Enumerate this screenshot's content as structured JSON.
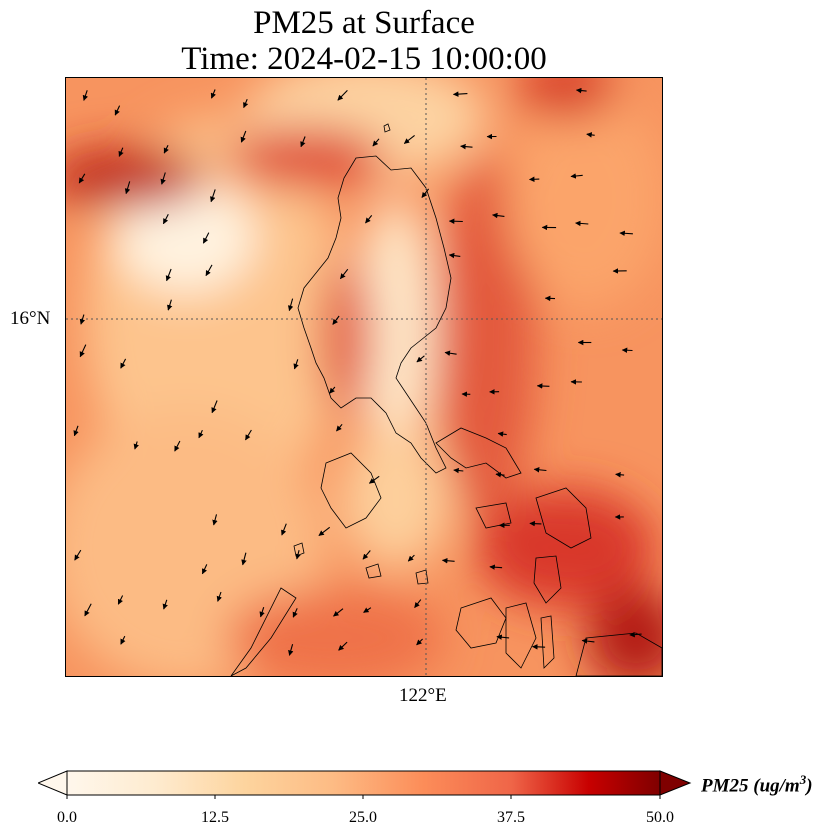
{
  "title": {
    "line1": "PM25 at Surface",
    "line2": "Time: 2024-02-15 10:00:00"
  },
  "map": {
    "variable": "PM25",
    "units": "ug/m3",
    "level": "Surface",
    "gridlines": "dotted",
    "lat_tick": "16°N",
    "lon_tick": "122°E",
    "features": [
      "coastlines",
      "wind-vectors"
    ]
  },
  "colorbar": {
    "label_var": "PM25 ",
    "label_units_open": "(ug/m",
    "label_units_exp": "3",
    "label_units_close": ")",
    "min": 0,
    "max": 50,
    "extend": "both",
    "colormap": "OrRd",
    "ticks": [
      "0.0",
      "12.5",
      "25.0",
      "37.5",
      "50.0"
    ]
  },
  "colors": {
    "low": "#fff7ec",
    "mid_low": "#fdd49e",
    "mid": "#fc8d59",
    "high": "#d7301f",
    "max": "#7f0000"
  }
}
